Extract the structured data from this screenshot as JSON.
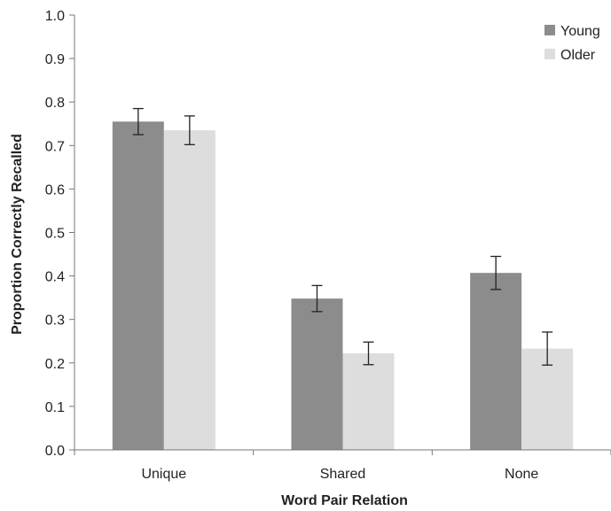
{
  "chart_data": {
    "type": "bar",
    "title": "",
    "xlabel": "Word Pair Relation",
    "ylabel": "Proportion Correctly Recalled",
    "ylim": [
      0,
      1.0
    ],
    "yticks": [
      "0.0",
      "0.1",
      "0.2",
      "0.3",
      "0.4",
      "0.5",
      "0.6",
      "0.7",
      "0.8",
      "0.9",
      "1.0"
    ],
    "categories": [
      "Unique",
      "Shared",
      "None"
    ],
    "series": [
      {
        "name": "Young",
        "color": "#8c8c8c",
        "values": [
          0.755,
          0.348,
          0.407
        ],
        "error": [
          0.03,
          0.03,
          0.038
        ]
      },
      {
        "name": "Older",
        "color": "#dddddd",
        "values": [
          0.735,
          0.222,
          0.233
        ],
        "error": [
          0.033,
          0.026,
          0.038
        ]
      }
    ],
    "grid": false,
    "legend_position": "top-right"
  }
}
